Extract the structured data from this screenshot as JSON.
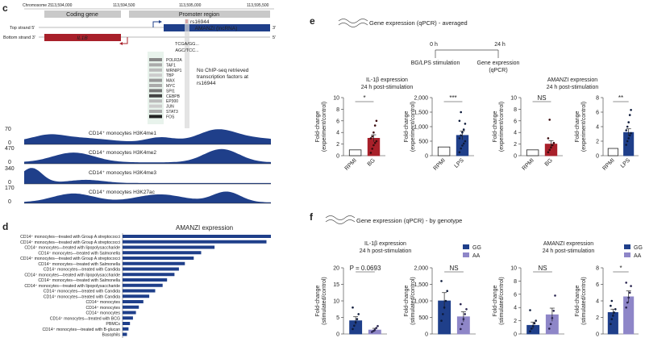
{
  "colors": {
    "navy": "#1f3f8a",
    "red": "#a8202a",
    "lav": "#8e86c8",
    "gray": "#bdbdbd",
    "grid": "#cccccc"
  },
  "panel_c": {
    "label": "c",
    "chromosome": "Chromosome 2:",
    "coords": [
      "113,594,000",
      "113,594,500",
      "113,595,000",
      "113,595,500"
    ],
    "coding_gene": "Coding gene",
    "promoter_region": "Promoter region",
    "snp": "rs16944",
    "top_strand": "Top strand 5′",
    "top_strand_end": "3′",
    "bottom_strand": "Bottom strand 3′",
    "bottom_strand_end": "5′",
    "gene_il1b": "IL1B",
    "gene_amanzi": "AMANZI (lncRNA)",
    "seq1": "TCGA/GG...",
    "seq2": "AGC/TCC...",
    "tfs": [
      "POLR2A",
      "TAF1",
      "WRNIP1",
      "TBP",
      "MAX",
      "MYC",
      "SPI1",
      "CEBPB",
      "EP300",
      "JUN",
      "STAT3",
      "FOS"
    ],
    "no_chip_note": "No ChIP-seq retrieved transcription factors at rs16944",
    "tracks": [
      {
        "max": "70",
        "name": "CD14⁺ monocytes H3K4me1"
      },
      {
        "max": "470",
        "name": "CD14⁺ monocytes H3K4me2"
      },
      {
        "max": "340",
        "name": "CD14⁺ monocytes H3K4me3"
      },
      {
        "max": "170",
        "name": "CD14⁺ monocytes H3K27ac"
      }
    ],
    "track_zero": "0"
  },
  "panel_d": {
    "label": "d",
    "title": "AMANZI expression",
    "rows": [
      {
        "label": "CD14⁺ monocytes—treated with Group A streptococci",
        "value": 1.0
      },
      {
        "label": "CD14⁺ monocytes—treated with Group A streptococci",
        "value": 0.97
      },
      {
        "label": "CD14⁺ monocytes—treated with lipopolysaccharide",
        "value": 0.62
      },
      {
        "label": "CD14⁺ monocytes—treated with Salmonella",
        "value": 0.53
      },
      {
        "label": "CD14⁺ monocytes—treated with Group A streptococci",
        "value": 0.48
      },
      {
        "label": "CD14⁺ monocytes—treated with Salmonella",
        "value": 0.42
      },
      {
        "label": "CD14⁺ monocytes—treated with Candida",
        "value": 0.38
      },
      {
        "label": "CD14⁺ monocytes—treated with lipopolysaccharide",
        "value": 0.35
      },
      {
        "label": "CD14⁺ monocytes—treated with Salmonella",
        "value": 0.3
      },
      {
        "label": "CD14⁺ monocytes—treated with lipopolysaccharide",
        "value": 0.27
      },
      {
        "label": "CD14⁺ monocytes—treated with Candida",
        "value": 0.22
      },
      {
        "label": "CD14⁺ monocytes—treated with Candida",
        "value": 0.18
      },
      {
        "label": "CD14⁺ monocytes",
        "value": 0.14
      },
      {
        "label": "CD14⁺ monocytes",
        "value": 0.11
      },
      {
        "label": "CD14⁺ monocytes",
        "value": 0.09
      },
      {
        "label": "CD14⁺ monocytes—treated with BCG",
        "value": 0.07
      },
      {
        "label": "PBMCs",
        "value": 0.05
      },
      {
        "label": "CD14⁺ monocytes—treated with B-glucan",
        "value": 0.04
      },
      {
        "label": "Basophils",
        "value": 0.03
      }
    ]
  },
  "panel_e": {
    "label": "e",
    "header": "Gene expression (qPCR) - averaged",
    "t0": "0 h",
    "t24": "24 h",
    "stim": "BG/LPS stimulation",
    "expr": "Gene expression",
    "expr2": "(qPCR)",
    "il1b_title1": "IL-1β expression",
    "il1b_title2": "24 h post-stimulation",
    "amanzi_title1": "AMANZI expression",
    "amanzi_title2": "24 h post-stimulation",
    "ylabel1": "Fold-change",
    "ylabel2": "(experiment/control)"
  },
  "panel_f": {
    "label": "f",
    "header": "Gene expression (qPCR) - by genotype",
    "il1b_title1": "IL-1β expression",
    "il1b_title2": "24 h post-stimulation",
    "amanzi_title1": "AMANZI expression",
    "amanzi_title2": "24 h post-stimulation",
    "ylabel1": "Fold-change",
    "ylabel2": "(stimulated/control)",
    "legend_gg": "GG",
    "legend_aa": "AA"
  },
  "chart_data": [
    {
      "type": "bar",
      "id": "d",
      "title": "AMANZI expression",
      "orientation": "horizontal",
      "note": "relative expression, axis not labeled",
      "values": [
        1.0,
        0.97,
        0.62,
        0.53,
        0.48,
        0.42,
        0.38,
        0.35,
        0.3,
        0.27,
        0.22,
        0.18,
        0.14,
        0.11,
        0.09,
        0.07,
        0.05,
        0.04,
        0.03
      ]
    },
    {
      "type": "bar",
      "id": "e1",
      "title": "IL-1β expression 24 h post-stimulation",
      "categories": [
        "RPMI",
        "BG"
      ],
      "values": [
        1.0,
        3.0
      ],
      "errors": [
        0,
        0.6
      ],
      "ylim": [
        0,
        10
      ],
      "ticks": [
        0,
        2,
        4,
        6,
        8,
        10
      ],
      "sig": "*",
      "points": [
        [],
        [
          0.5,
          1.2,
          1.8,
          2.2,
          2.5,
          3.0,
          3.3,
          4.0,
          5.2,
          6.0
        ]
      ]
    },
    {
      "type": "bar",
      "id": "e2",
      "title": "IL-1β expression 24 h post-stimulation",
      "categories": [
        "RPMI",
        "LPS"
      ],
      "values": [
        300,
        700
      ],
      "errors": [
        0,
        150
      ],
      "ylim": [
        0,
        2000
      ],
      "ticks": [
        0,
        500,
        1000,
        1500,
        2000
      ],
      "sig": "***",
      "points": [
        [],
        [
          120,
          250,
          350,
          420,
          500,
          600,
          700,
          800,
          900,
          1100,
          1200,
          1500
        ]
      ]
    },
    {
      "type": "bar",
      "id": "e3",
      "title": "AMANZI expression 24 h post-stimulation",
      "categories": [
        "RPMI",
        "BG"
      ],
      "values": [
        1.0,
        2.0
      ],
      "errors": [
        0,
        0.6
      ],
      "ylim": [
        0,
        10
      ],
      "ticks": [
        0,
        2,
        4,
        6,
        8,
        10
      ],
      "sig": "NS",
      "points": [
        [],
        [
          0.6,
          1.0,
          1.4,
          1.8,
          2.2,
          3.0,
          6.2
        ]
      ]
    },
    {
      "type": "bar",
      "id": "e4",
      "title": "AMANZI expression 24 h post-stimulation",
      "categories": [
        "RPMI",
        "LPS"
      ],
      "values": [
        1.0,
        3.2
      ],
      "errors": [
        0,
        0.5
      ],
      "ylim": [
        0,
        8
      ],
      "ticks": [
        0,
        2,
        4,
        6,
        8
      ],
      "sig": "**",
      "points": [
        [],
        [
          1.5,
          2.0,
          2.4,
          2.8,
          3.1,
          3.5,
          4.0,
          4.6,
          5.6,
          6.3
        ]
      ]
    },
    {
      "type": "bar",
      "id": "f1",
      "title": "IL-1β expression 24 h post-stimulation",
      "categories": [
        "GG",
        "AA"
      ],
      "values": [
        4.0,
        1.2
      ],
      "errors": [
        1.2,
        0.5
      ],
      "ylim": [
        0,
        20
      ],
      "ticks": [
        0,
        5,
        10,
        15,
        20
      ],
      "sig": "P = 0.0693",
      "points": [
        [
          1.5,
          2.5,
          3.5,
          4.5,
          6,
          8
        ],
        [
          0.6,
          0.9,
          1.3,
          1.8,
          2.4
        ]
      ]
    },
    {
      "type": "bar",
      "id": "f2",
      "title": "IL-1β expression 24 h post-stimulation",
      "categories": [
        "GG",
        "AA"
      ],
      "values": [
        1000,
        520
      ],
      "errors": [
        250,
        150
      ],
      "ylim": [
        0,
        2000
      ],
      "ticks": [
        0,
        500,
        1000,
        1500,
        2000
      ],
      "sig": "NS",
      "points": [
        [
          400,
          600,
          800,
          1000,
          1300,
          1600
        ],
        [
          150,
          300,
          450,
          600,
          750,
          900
        ]
      ]
    },
    {
      "type": "bar",
      "id": "f3",
      "title": "AMANZI expression 24 h post-stimulation",
      "categories": [
        "GG",
        "AA"
      ],
      "values": [
        1.3,
        2.9
      ],
      "errors": [
        0.5,
        1.0
      ],
      "ylim": [
        0,
        10
      ],
      "ticks": [
        0,
        2,
        4,
        6,
        8,
        10
      ],
      "sig": "NS",
      "points": [
        [
          0.4,
          0.8,
          1.2,
          1.6,
          2.0,
          3.6
        ],
        [
          0.8,
          1.5,
          2.4,
          3.5,
          5.8
        ]
      ]
    },
    {
      "type": "bar",
      "id": "f4",
      "title": "AMANZI expression 24 h post-stimulation",
      "categories": [
        "GG",
        "AA"
      ],
      "values": [
        2.6,
        4.5
      ],
      "errors": [
        0.4,
        0.7
      ],
      "ylim": [
        0,
        8
      ],
      "ticks": [
        0,
        2,
        4,
        6,
        8
      ],
      "sig": "*",
      "points": [
        [
          1.2,
          1.8,
          2.2,
          2.6,
          3.0,
          3.4,
          4.0
        ],
        [
          3.2,
          3.8,
          4.4,
          5.0,
          5.8,
          6.2
        ]
      ]
    }
  ]
}
